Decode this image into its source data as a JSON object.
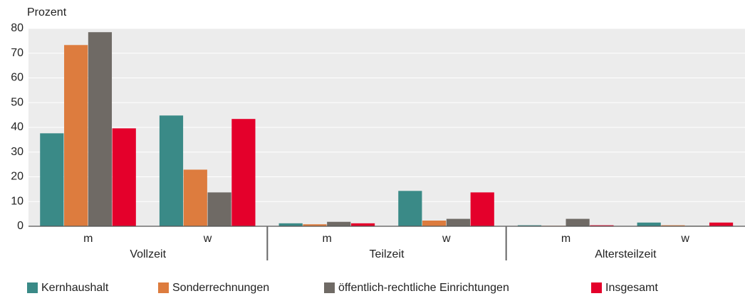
{
  "chart_data": {
    "type": "bar",
    "y_axis_label": "Prozent",
    "categories": [
      "m",
      "w",
      "m",
      "w",
      "m",
      "w"
    ],
    "groups": [
      "Vollzeit",
      "Teilzeit",
      "Altersteilzeit"
    ],
    "series": [
      {
        "name": "Kernhaushalt",
        "color": "#3a8a87",
        "values": [
          37.6,
          44.8,
          1.2,
          14.3,
          0.4,
          1.5
        ]
      },
      {
        "name": "Sonderrechnungen",
        "color": "#dd7c3e",
        "values": [
          73.3,
          22.9,
          0.8,
          2.3,
          0.2,
          0.4
        ]
      },
      {
        "name": "öffentlich-rechtliche Einrichtungen",
        "color": "#6f6a65",
        "values": [
          78.5,
          13.7,
          1.8,
          3.0,
          3.0,
          0.2
        ]
      },
      {
        "name": "Insgesamt",
        "color": "#e4002b",
        "values": [
          39.6,
          43.4,
          1.2,
          13.7,
          0.4,
          1.5
        ]
      }
    ],
    "ylim": [
      0,
      80
    ],
    "yticks": [
      0,
      10,
      20,
      30,
      40,
      50,
      60,
      70,
      80
    ],
    "grid": true,
    "legend": "bottom"
  }
}
